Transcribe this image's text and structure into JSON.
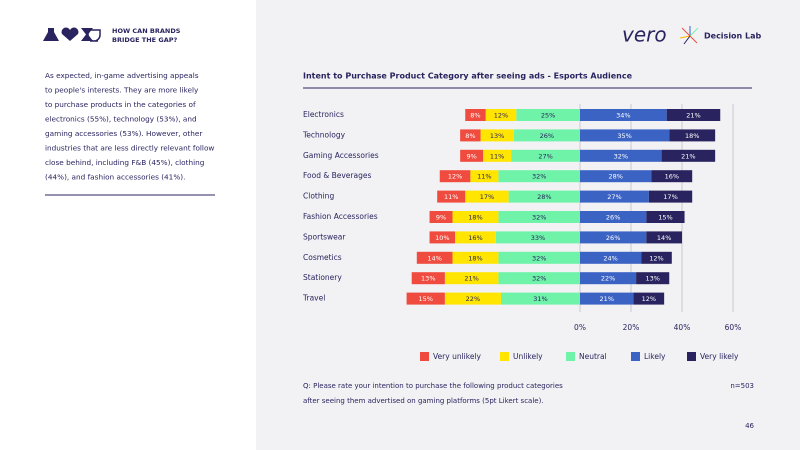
{
  "header": {
    "tagline": [
      "HOW CAN BRANDS",
      "BRIDGE THE GAP?"
    ],
    "logos": [
      "vero",
      "Decision Lab"
    ]
  },
  "body_text": [
    "As expected, in-game advertising appeals",
    "to people's interests. They are more likely",
    "to purchase products in the categories of",
    "electronics (55%), technology (53%), and",
    "gaming accessories (53%). However, other",
    "industries that are less directly relevant follow",
    "close behind, including F&B (45%), clothing",
    "(44%), and fashion accessories (41%)."
  ],
  "chart_data": {
    "type": "bar",
    "orientation": "horizontal",
    "title": "Intent to Purchase Product Category after seeing ads - Esports Audience",
    "categories": [
      "Electronics",
      "Technology",
      "Gaming Accessories",
      "Food & Beverages",
      "Clothing",
      "Fashion Accessories",
      "Sportswear",
      "Cosmetics",
      "Stationery",
      "Travel"
    ],
    "series": [
      {
        "name": "Very unlikely",
        "color": "#ef4b3f",
        "values": [
          8,
          8,
          9,
          12,
          11,
          9,
          10,
          14,
          13,
          15
        ],
        "value_labels": [
          "8%",
          "8%",
          "9%",
          "12%",
          "11%",
          "9%",
          "10%",
          "14%",
          "13%",
          "15%"
        ]
      },
      {
        "name": "Unlikely",
        "color": "#ffe500",
        "values": [
          12,
          13,
          11,
          11,
          17,
          18,
          16,
          18,
          21,
          22
        ],
        "value_labels": [
          "12%",
          "13%",
          "11%",
          "11%",
          "17%",
          "18%",
          "16%",
          "18%",
          "21%",
          "22%"
        ]
      },
      {
        "name": "Neutral",
        "color": "#6ff3a8",
        "values": [
          25,
          26,
          27,
          32,
          28,
          32,
          33,
          32,
          32,
          31
        ],
        "value_labels": [
          "25%",
          "26%",
          "27%",
          "32%",
          "28%",
          "32%",
          "33%",
          "32%",
          "32%",
          "31%"
        ]
      },
      {
        "name": "Likely",
        "color": "#3b63c4",
        "values": [
          34,
          35,
          32,
          28,
          27,
          26,
          26,
          24,
          22,
          21
        ],
        "value_labels": [
          "34%",
          "35%",
          "32%",
          "28%",
          "27%",
          "26%",
          "26%",
          "24%",
          "22%",
          "21%"
        ]
      },
      {
        "name": "Very likely",
        "color": "#29245f",
        "values": [
          21,
          18,
          21,
          16,
          17,
          15,
          14,
          12,
          13,
          12
        ],
        "value_labels": [
          "21%",
          "18%",
          "21%",
          "16%",
          "17%",
          "15%",
          "14%",
          "12%",
          "13%",
          "12%"
        ]
      }
    ],
    "xlim": [
      -70,
      60
    ],
    "xticks": [
      {
        "value": 0,
        "label": "0%"
      },
      {
        "value": 20,
        "label": "20%"
      },
      {
        "value": 40,
        "label": "40%"
      },
      {
        "value": 60,
        "label": "60%"
      }
    ],
    "grid": true,
    "legend": "bottom"
  },
  "footnote": [
    "Q: Please rate your intention to purchase the following product categories",
    "after seeing them advertised on gaming platforms (5pt Likert scale)."
  ],
  "sample_size": "n=503",
  "page_number": "46"
}
